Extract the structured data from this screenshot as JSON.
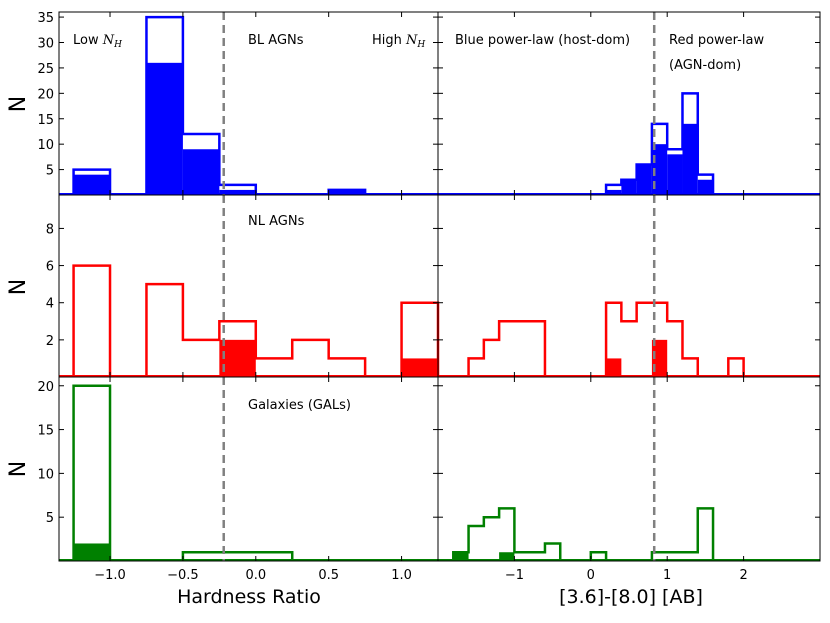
{
  "chart_data": {
    "type": "histogram-grid",
    "title": "",
    "colors": {
      "BL": "#0000ff",
      "NL": "#ff0000",
      "GAL": "#008000",
      "divider": "#808080"
    },
    "columns": [
      {
        "key": "hr",
        "xlabel": "Hardness Ratio",
        "xlim": [
          -1.35,
          1.25
        ],
        "divider": -0.22,
        "ticks": [
          -1.0,
          -0.5,
          0.0,
          0.5,
          1.0
        ],
        "tick_labels": [
          "−1.0",
          "−0.5",
          "0.0",
          "0.5",
          "1.0"
        ]
      },
      {
        "key": "color",
        "xlabel": "[3.6]-[8.0] [AB]",
        "xlim": [
          -2.0,
          3.0
        ],
        "divider": 0.83,
        "ticks": [
          -1,
          0,
          1,
          2
        ],
        "tick_labels": [
          "−1",
          "0",
          "1",
          "2"
        ]
      }
    ],
    "rows": [
      {
        "key": "BL",
        "ylabel": "N",
        "ylim": [
          0,
          36
        ],
        "yticks": [
          5,
          10,
          15,
          20,
          25,
          30,
          35
        ],
        "label": "BL AGNs",
        "color_key": "BL"
      },
      {
        "key": "NL",
        "ylabel": "N",
        "ylim": [
          0,
          9.8
        ],
        "yticks": [
          2,
          4,
          6,
          8
        ],
        "label": "NL AGNs",
        "color_key": "NL"
      },
      {
        "key": "GAL",
        "ylabel": "N",
        "ylim": [
          0,
          21
        ],
        "yticks": [
          5,
          10,
          15,
          20
        ],
        "label": "Galaxies (GALs)",
        "color_key": "GAL"
      }
    ],
    "annotations": {
      "low_nh_prefix": "Low ",
      "high_nh_prefix": "High ",
      "nh_symbol": "N",
      "nh_subscript": "H",
      "blue_powerlaw": "Blue power-law (host-dom)",
      "red_powerlaw_1": "Red power-law",
      "red_powerlaw_2": "(AGN-dom)"
    },
    "panels": {
      "BL_hr": {
        "edges": [
          -1.25,
          -1.0,
          -0.75,
          -0.5,
          -0.25,
          0.0,
          0.25,
          0.5,
          0.75,
          1.0,
          1.25
        ],
        "open": [
          5,
          0,
          35,
          12,
          2,
          0,
          0,
          1,
          0,
          0
        ],
        "filled": [
          4,
          0,
          26,
          9,
          1,
          0,
          0,
          1,
          0,
          0
        ]
      },
      "BL_color": {
        "edges": [
          0.2,
          0.4,
          0.6,
          0.8,
          1.0,
          1.2,
          1.4,
          1.6,
          1.8
        ],
        "open": [
          2,
          3,
          6,
          14,
          9,
          20,
          4
        ],
        "filled": [
          1,
          3,
          6,
          10,
          8,
          14,
          3
        ]
      },
      "NL_hr": {
        "edges": [
          -1.25,
          -1.0,
          -0.75,
          -0.5,
          -0.25,
          0.0,
          0.25,
          0.5,
          0.75,
          1.0,
          1.25
        ],
        "open": [
          6,
          0,
          5,
          2,
          3,
          1,
          2,
          1,
          0,
          4
        ],
        "filled": [
          0,
          0,
          0,
          0,
          2,
          0,
          0,
          0,
          0,
          1
        ]
      },
      "NL_color": {
        "edges": [
          -1.6,
          -1.4,
          -1.2,
          -1.0,
          -0.8,
          -0.6,
          -0.4,
          -0.2,
          0.0,
          0.2,
          0.4,
          0.6,
          0.8,
          1.0,
          1.2,
          1.4,
          1.6,
          1.8,
          2.0,
          2.2
        ],
        "open": [
          1,
          2,
          3,
          3,
          3,
          0,
          0,
          0,
          0,
          4,
          3,
          4,
          4,
          3,
          1,
          0,
          0,
          1,
          0
        ],
        "filled": [
          0,
          0,
          0,
          0,
          0,
          0,
          0,
          0,
          0,
          1,
          0,
          0,
          2,
          0,
          0,
          0,
          0,
          0,
          0
        ]
      },
      "GAL_hr": {
        "edges": [
          -1.25,
          -1.0,
          -0.75,
          -0.5,
          -0.25,
          0.0,
          0.25,
          0.5,
          0.75,
          1.0,
          1.25
        ],
        "open": [
          20,
          0,
          0,
          1,
          1,
          1,
          0,
          0,
          0,
          0
        ],
        "filled": [
          2,
          0,
          0,
          0,
          0,
          0,
          0,
          0,
          0,
          0
        ]
      },
      "GAL_color": {
        "edges": [
          -1.8,
          -1.6,
          -1.4,
          -1.2,
          -1.0,
          -0.8,
          -0.6,
          -0.4,
          -0.2,
          0.0,
          0.2,
          0.4,
          0.6,
          0.8,
          1.0,
          1.2,
          1.4,
          1.6,
          1.8,
          2.0
        ],
        "open": [
          1,
          4,
          5,
          6,
          1,
          1,
          2,
          0,
          0,
          1,
          0,
          0,
          0,
          1,
          1,
          1,
          6,
          0,
          0
        ],
        "filled": [
          1,
          0,
          0,
          1,
          0,
          0,
          0,
          0,
          0,
          0,
          0,
          0,
          0,
          0,
          0,
          0,
          0,
          0,
          0
        ]
      }
    }
  }
}
